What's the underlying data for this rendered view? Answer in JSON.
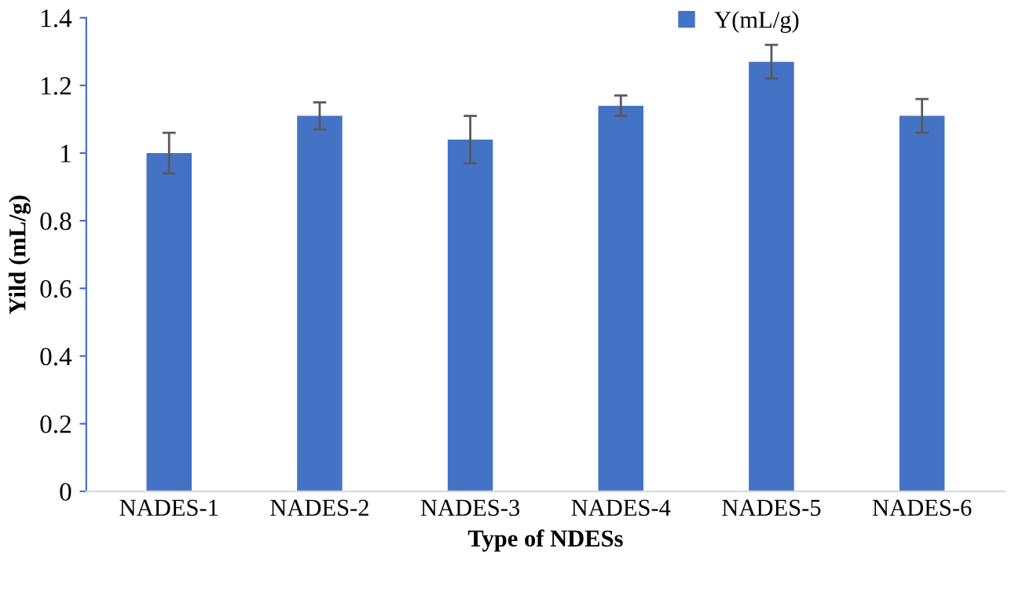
{
  "chart_data": {
    "type": "bar",
    "xlabel": "Type of NDESs",
    "ylabel": "Yild (mL/g)",
    "categories": [
      "NADES-1",
      "NADES-2",
      "NADES-3",
      "NADES-4",
      "NADES-5",
      "NADES-6"
    ],
    "series": [
      {
        "name": "Y(mL/g)",
        "color": "#4472c4",
        "values": [
          1.0,
          1.11,
          1.04,
          1.14,
          1.27,
          1.11
        ],
        "errors": [
          0.06,
          0.04,
          0.07,
          0.03,
          0.05,
          0.05
        ]
      }
    ],
    "ylim": [
      0,
      1.4
    ],
    "yticks": [
      0,
      0.2,
      0.4,
      0.6,
      0.8,
      1,
      1.2,
      1.4
    ],
    "grid": false,
    "legend": "top right"
  }
}
